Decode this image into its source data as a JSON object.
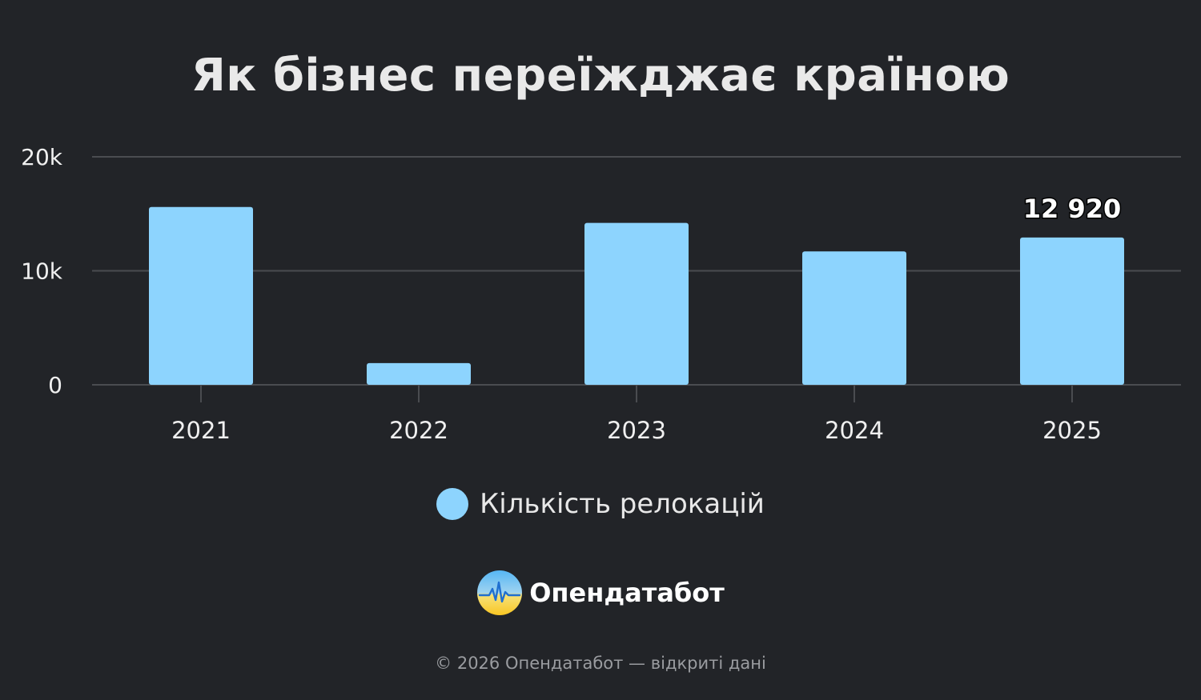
{
  "title": "Як бізнес переїжджає країною",
  "chart_data": {
    "type": "bar",
    "categories": [
      "2021",
      "2022",
      "2023",
      "2024",
      "2025"
    ],
    "series": [
      {
        "name": "Кількість релокацій",
        "values": [
          15600,
          1900,
          14200,
          11700,
          12920
        ],
        "color": "#8dd4fe"
      }
    ],
    "ylim": [
      0,
      20000
    ],
    "y_ticks": [
      {
        "value": 0,
        "label": "0"
      },
      {
        "value": 10000,
        "label": "10k"
      },
      {
        "value": 20000,
        "label": "20k"
      }
    ],
    "data_labels": [
      {
        "category": "2025",
        "text": "12 920"
      }
    ],
    "grid": true,
    "legend_position": "bottom"
  },
  "legend": {
    "label": "Кількість релокацій",
    "color": "#8dd4fe"
  },
  "brand": {
    "name": "Опендатабот",
    "icon": "opendatabot-logo-icon"
  },
  "footer": "© 2026 Опендатабот — відкриті дані",
  "colors": {
    "background": "#222428",
    "bar": "#8dd4fe",
    "grid": "#4a4c50",
    "axis_text": "#f0f0f0"
  }
}
